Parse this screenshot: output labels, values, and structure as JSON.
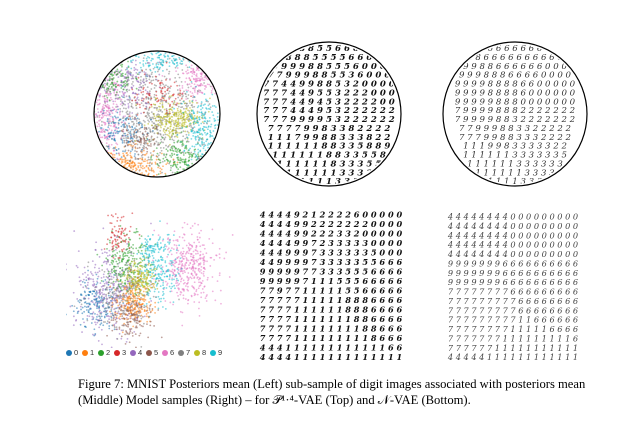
{
  "figure": {
    "caption_line1": "Figure 7: MNIST Posteriors mean (Left) sub-sample of digit images associated with posteriors mean",
    "caption_line2": "(Middle) Model samples (Right) – for 𝒫¹·⁴-VAE (Top) and 𝒩-VAE (Bottom)."
  },
  "legend": {
    "items": [
      {
        "label": "0",
        "color": "#1f77b4"
      },
      {
        "label": "1",
        "color": "#ff7f0e"
      },
      {
        "label": "2",
        "color": "#2ca02c"
      },
      {
        "label": "3",
        "color": "#d62728"
      },
      {
        "label": "4",
        "color": "#9467bd"
      },
      {
        "label": "5",
        "color": "#8c564b"
      },
      {
        "label": "6",
        "color": "#e377c2"
      },
      {
        "label": "7",
        "color": "#7f7f7f"
      },
      {
        "label": "8",
        "color": "#bcbd22"
      },
      {
        "label": "9",
        "color": "#17becf"
      }
    ]
  },
  "digit_grids": {
    "top_middle_rows": [
      "8 8 8 5 5 6 6 6 6",
      "7 8 8 8 5 5 5 5 6 6 0 0",
      "9 9 9 9 8 8 5 5 5 6 0 0 0",
      "7 7 9 9 9 8 8 5 5 3 6 0 0 0",
      "7 7 4 4 9 9 8 8 5 3 2 0 0 0 0",
      "7 7 7 4 4 9 5 5 3 2 2 2 0 0 0",
      "7 7 7 4 4 9 4 5 3 2 2 2 2 0 0",
      "7 7 7 4 4 4 9 5 3 2 2 2 2 2 2",
      "7 7 7 9 9 9 9 5 3 2 2 2 2 2 2",
      "7 7 7 7 9 9 8 3 3 8 2 2 2 2",
      "1 1 1 7 9 9 8 8 3 3 3 8 2 2",
      "1 1 1 1 1 1 8 8 3 3 5 8 8 9",
      "1 1 1 1 1 1 8 8 3 3 5 5 8",
      "1 1 1 1 1 1 8 3 3 3 5 5",
      "1 1 1 1 1 1 3 3 3 3",
      "1 1 1 1 3 3 3"
    ],
    "top_right_rows": [
      "6 6 6 6 6 6 6 6 6",
      "8 8 6 6 6 6 6 6 6 6 6 6",
      "9 9 8 8 6 6 6 6 6 6 0 0 0",
      "9 9 9 8 8 8 6 6 6 6 0 0 0 0",
      "9 9 9 9 8 8 8 8 6 6 0 0 0 0 0",
      "9 9 9 9 8 8 8 8 6 0 0 0 0 0 0",
      "9 9 9 9 9 8 8 8 0 0 0 0 0 0 0",
      "7 9 9 9 9 8 8 8 2 2 2 2 2 2 2",
      "7 9 9 9 9 8 8 3 2 2 2 2 2 2 2",
      "7 7 9 9 9 8 8 3 3 2 2 2 2 2",
      "7 7 7 9 9 8 8 3 3 3 2 2 2 2",
      "1 1 1 9 9 8 3 3 3 3 3 2 2",
      "1 1 1 1 1 1 3 3 3 3 3 3 5",
      "1 1 1 1 1 1 3 3 3 3 3 3",
      "1 1 1 1 1 1 3 3 3 3",
      "1 1 1 1 3 3 3"
    ],
    "bottom_middle_rows": [
      "4 4 4 4 9 2 1 2 2 2 2 6 0 0 0 0 0",
      "4 4 4 4 9 9 2 2 2 2 2 2 2 0 0 0 0",
      "4 4 4 4 9 9 2 2 2 3 3 2 0 0 0 0 0",
      "4 4 4 4 9 9 7 2 3 3 3 3 3 0 0 0 0",
      "4 4 4 9 9 9 7 3 3 3 3 3 3 5 0 0 0",
      "4 4 9 9 9 9 7 3 3 3 3 3 5 5 6 6 6",
      "9 9 9 9 9 7 7 3 3 3 5 5 5 6 6 6 6",
      "9 9 9 9 9 7 1 1 1 5 5 5 6 6 6 6 6",
      "7 7 9 7 7 1 1 1 1 1 5 5 6 6 6 6 6",
      "7 7 7 7 7 1 1 1 1 1 8 8 8 6 6 6 6",
      "7 7 7 7 1 1 1 1 1 1 8 8 8 6 6 6 6",
      "7 7 7 7 1 1 1 1 1 1 1 8 8 6 6 6 6",
      "7 7 7 7 1 1 1 1 1 1 1 1 8 8 6 6 6",
      "7 7 7 7 1 1 1 1 1 1 1 1 1 8 6 6 6",
      "4 4 4 1 1 1 1 1 1 1 1 1 1 1 1 6 6",
      "4 4 4 4 1 1 1 1 1 1 1 1 1 1 1 1 1"
    ],
    "bottom_right_rows": [
      "4 4 4 4 4 4 4 4 0 0 0 0 0 0 0 0 0",
      "4 4 4 4 4 4 4 4 0 0 0 0 0 0 0 0 0",
      "4 4 4 4 4 4 4 4 0 0 0 0 0 0 0 0 0",
      "4 4 4 4 4 4 4 4 0 0 0 0 0 0 0 0 0",
      "4 4 4 4 4 4 4 4 0 0 0 0 0 0 0 0 0",
      "9 9 9 9 9 9 9 6 6 6 6 6 6 6 6 6 6",
      "9 9 9 9 9 9 9 6 6 6 6 6 6 6 6 6 6",
      "9 9 9 9 9 9 9 6 6 6 6 6 6 6 6 6 6",
      "7 7 7 7 7 7 7 7 6 6 6 6 6 6 6 6 6",
      "7 7 7 7 7 7 7 7 7 6 6 6 6 6 6 6 6",
      "7 7 7 7 7 7 7 7 7 6 6 6 6 6 6 6 6",
      "7 7 7 7 7 7 7 7 7 1 1 6 6 6 6 6 6",
      "7 7 7 7 7 7 7 7 1 1 1 1 1 6 6 6 6",
      "7 7 7 7 7 7 7 1 1 1 1 1 1 1 1 1 6",
      "7 7 7 7 7 7 1 1 1 1 1 1 1 1 1 1 1",
      "4 4 4 4 4 1 1 1 1 1 1 1 1 1 1 1 1"
    ]
  }
}
